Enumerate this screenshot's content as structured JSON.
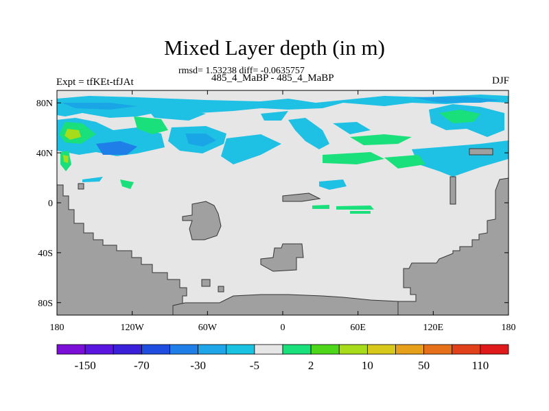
{
  "chart_data": {
    "type": "heatmap",
    "title": "Mixed Layer depth (in m)",
    "stats_line": "rmsd= 1.53238 diff= -0.0635757",
    "case_line": "485_4_MaBP - 485_4_MaBP",
    "left_string": "Expt = tfKEt-tfJAt",
    "right_string": "DJF",
    "x_range": [
      -180,
      180
    ],
    "y_range": [
      -90,
      90
    ],
    "x_ticks": [
      {
        "value": -180,
        "label": "180"
      },
      {
        "value": -120,
        "label": "120W"
      },
      {
        "value": -60,
        "label": "60W"
      },
      {
        "value": 0,
        "label": "0"
      },
      {
        "value": 60,
        "label": "60E"
      },
      {
        "value": 120,
        "label": "120E"
      },
      {
        "value": 180,
        "label": "180"
      }
    ],
    "y_ticks": [
      {
        "value": 80,
        "label": "80N"
      },
      {
        "value": 40,
        "label": "40N"
      },
      {
        "value": 0,
        "label": "0"
      },
      {
        "value": -40,
        "label": "40S"
      },
      {
        "value": -80,
        "label": "80S"
      }
    ],
    "colorbar": {
      "colors": [
        "#7b0fd8",
        "#5a16e0",
        "#3a20d8",
        "#1f4de0",
        "#1f7ee8",
        "#1ea6e8",
        "#19c2e0",
        "#e6e6e6",
        "#19e07a",
        "#4ed61a",
        "#a6dc1a",
        "#d8c81a",
        "#e6a01a",
        "#e6701a",
        "#e0401a",
        "#e01a1a"
      ],
      "labels": [
        "-150",
        "-70",
        "-30",
        "-5",
        "2",
        "10",
        "50",
        "110"
      ]
    }
  }
}
